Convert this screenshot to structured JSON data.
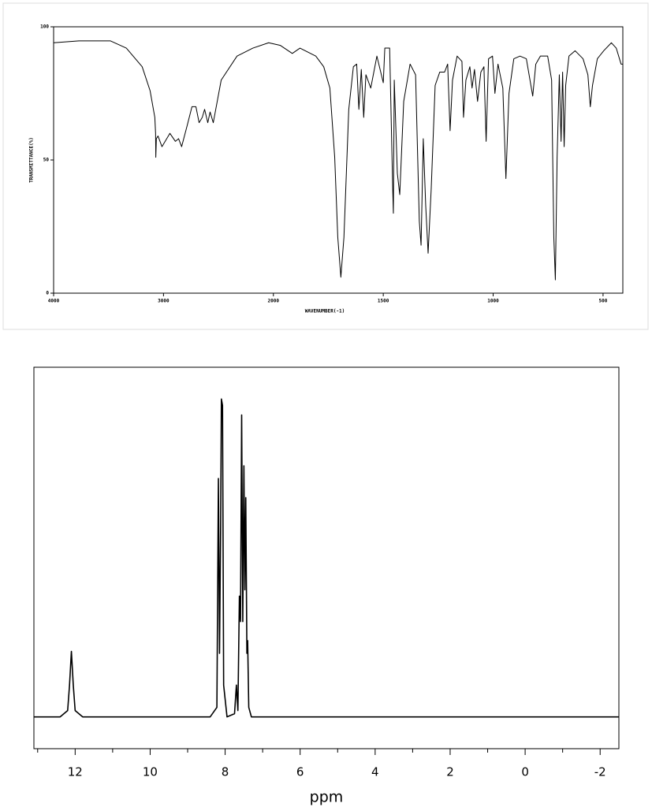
{
  "chart_data": [
    {
      "type": "line",
      "x_label": "WAVENUMBER(-1)",
      "y_label": "TRANSMITTANCE(%)",
      "xlim": [
        4000,
        410
      ],
      "ylim": [
        0,
        100
      ],
      "xticks": [
        4000,
        3000,
        2000,
        1500,
        1000,
        500
      ],
      "yticks": [
        0,
        50,
        100
      ],
      "x": [
        4000,
        3770,
        3482,
        3338,
        3194,
        3122,
        3079,
        3072,
        3070,
        3065,
        3050,
        3014,
        2942,
        2892,
        2863,
        2835,
        2784,
        2741,
        2705,
        2676,
        2647,
        2626,
        2597,
        2576,
        2547,
        2475,
        2331,
        2187,
        2043,
        1968,
        1914,
        1879,
        1807,
        1771,
        1743,
        1721,
        1707,
        1693,
        1679,
        1657,
        1636,
        1621,
        1611,
        1600,
        1589,
        1579,
        1557,
        1529,
        1500,
        1493,
        1471,
        1457,
        1454,
        1450,
        1436,
        1425,
        1407,
        1378,
        1353,
        1336,
        1328,
        1318,
        1307,
        1296,
        1282,
        1264,
        1243,
        1221,
        1207,
        1196,
        1185,
        1164,
        1142,
        1135,
        1124,
        1106,
        1096,
        1085,
        1071,
        1056,
        1042,
        1032,
        1021,
        1003,
        992,
        978,
        956,
        942,
        928,
        906,
        878,
        849,
        820,
        806,
        785,
        752,
        734,
        724,
        717,
        709,
        699,
        691,
        684,
        677,
        670,
        655,
        627,
        591,
        569,
        558,
        548,
        526,
        497,
        462,
        440,
        418,
        410
      ],
      "series": [
        {
          "color": "#000000",
          "values": [
            94,
            94.7,
            94.7,
            92,
            85,
            76,
            66,
            60,
            51,
            58,
            59,
            55,
            60,
            57,
            58,
            55,
            63,
            70,
            70,
            64,
            66,
            69,
            64,
            68,
            64,
            80,
            89,
            92,
            94,
            93,
            90,
            92,
            89,
            85,
            77,
            51,
            21,
            6,
            21,
            69,
            85,
            86,
            69,
            84,
            66,
            82,
            77,
            89,
            79,
            92,
            92,
            39,
            30,
            80,
            45,
            37,
            72,
            86,
            82,
            27,
            18,
            58,
            33,
            15,
            39,
            78,
            83,
            83,
            86,
            61,
            80,
            89,
            87,
            66,
            80,
            85,
            77,
            84,
            72,
            83,
            85,
            57,
            88,
            89,
            75,
            86,
            77,
            43,
            75,
            88,
            89,
            88,
            74,
            86,
            89,
            89,
            80,
            21,
            5,
            51,
            82,
            57,
            83,
            55,
            78,
            89,
            91,
            88,
            82,
            70,
            78,
            88,
            91,
            94,
            92,
            86,
            86
          ]
        }
      ]
    },
    {
      "type": "line",
      "x_label": "ppm",
      "xlim": [
        13.1,
        -2.5
      ],
      "ylim": [
        -10,
        110
      ],
      "xticks": [
        12,
        10,
        8,
        6,
        4,
        2,
        0,
        -2
      ],
      "xminor_ticks": [
        13,
        11,
        9,
        7,
        5,
        3,
        1,
        -1
      ],
      "x": [
        13.1,
        12.4,
        12.2,
        12.15,
        12.1,
        12.05,
        12.0,
        11.8,
        8.4,
        8.22,
        8.18,
        8.15,
        8.12,
        8.1,
        8.07,
        8.04,
        7.95,
        7.75,
        7.7,
        7.66,
        7.62,
        7.59,
        7.56,
        7.53,
        7.5,
        7.475,
        7.45,
        7.42,
        7.4,
        7.37,
        7.3,
        7.0,
        -2.5
      ],
      "series": [
        {
          "color": "#000000",
          "values": [
            0,
            0,
            2,
            10,
            20.6,
            10,
            2,
            0,
            0,
            3,
            75,
            20,
            60,
            100,
            98,
            10,
            0,
            1,
            10,
            2,
            38,
            30,
            95,
            30,
            79,
            40,
            69,
            20,
            24,
            3,
            0,
            0,
            0
          ]
        }
      ]
    }
  ]
}
